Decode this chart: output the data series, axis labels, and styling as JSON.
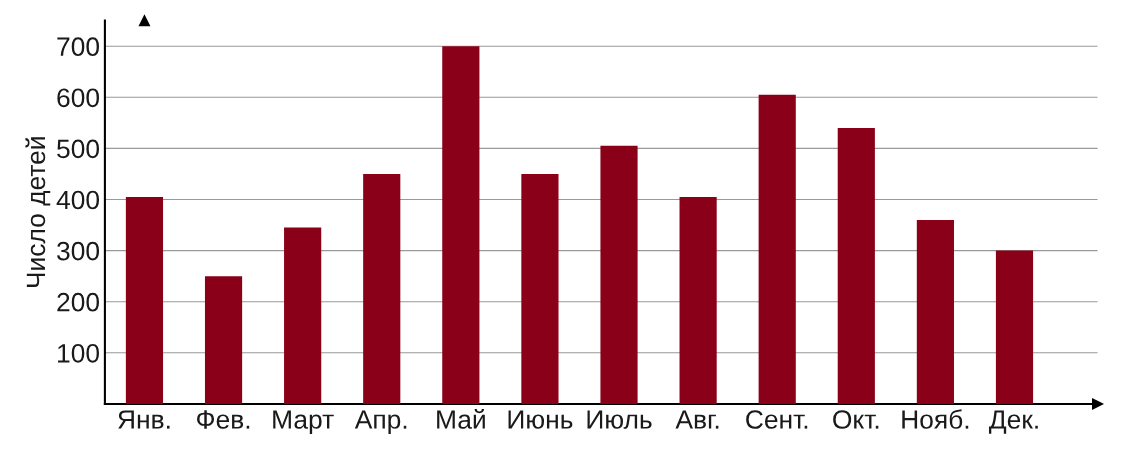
{
  "chart_data": {
    "type": "bar",
    "ylabel": "Число детей",
    "categories": [
      "Янв.",
      "Фев.",
      "Март",
      "Апр.",
      "Май",
      "Июнь",
      "Июль",
      "Авг.",
      "Сент.",
      "Окт.",
      "Нояб.",
      "Дек."
    ],
    "values": [
      405,
      250,
      345,
      450,
      700,
      450,
      505,
      405,
      605,
      540,
      360,
      300
    ],
    "color": "#8b0019",
    "ylim": [
      0,
      750
    ],
    "yticks": [
      100,
      200,
      300,
      400,
      500,
      600,
      700
    ],
    "grid": "y"
  }
}
